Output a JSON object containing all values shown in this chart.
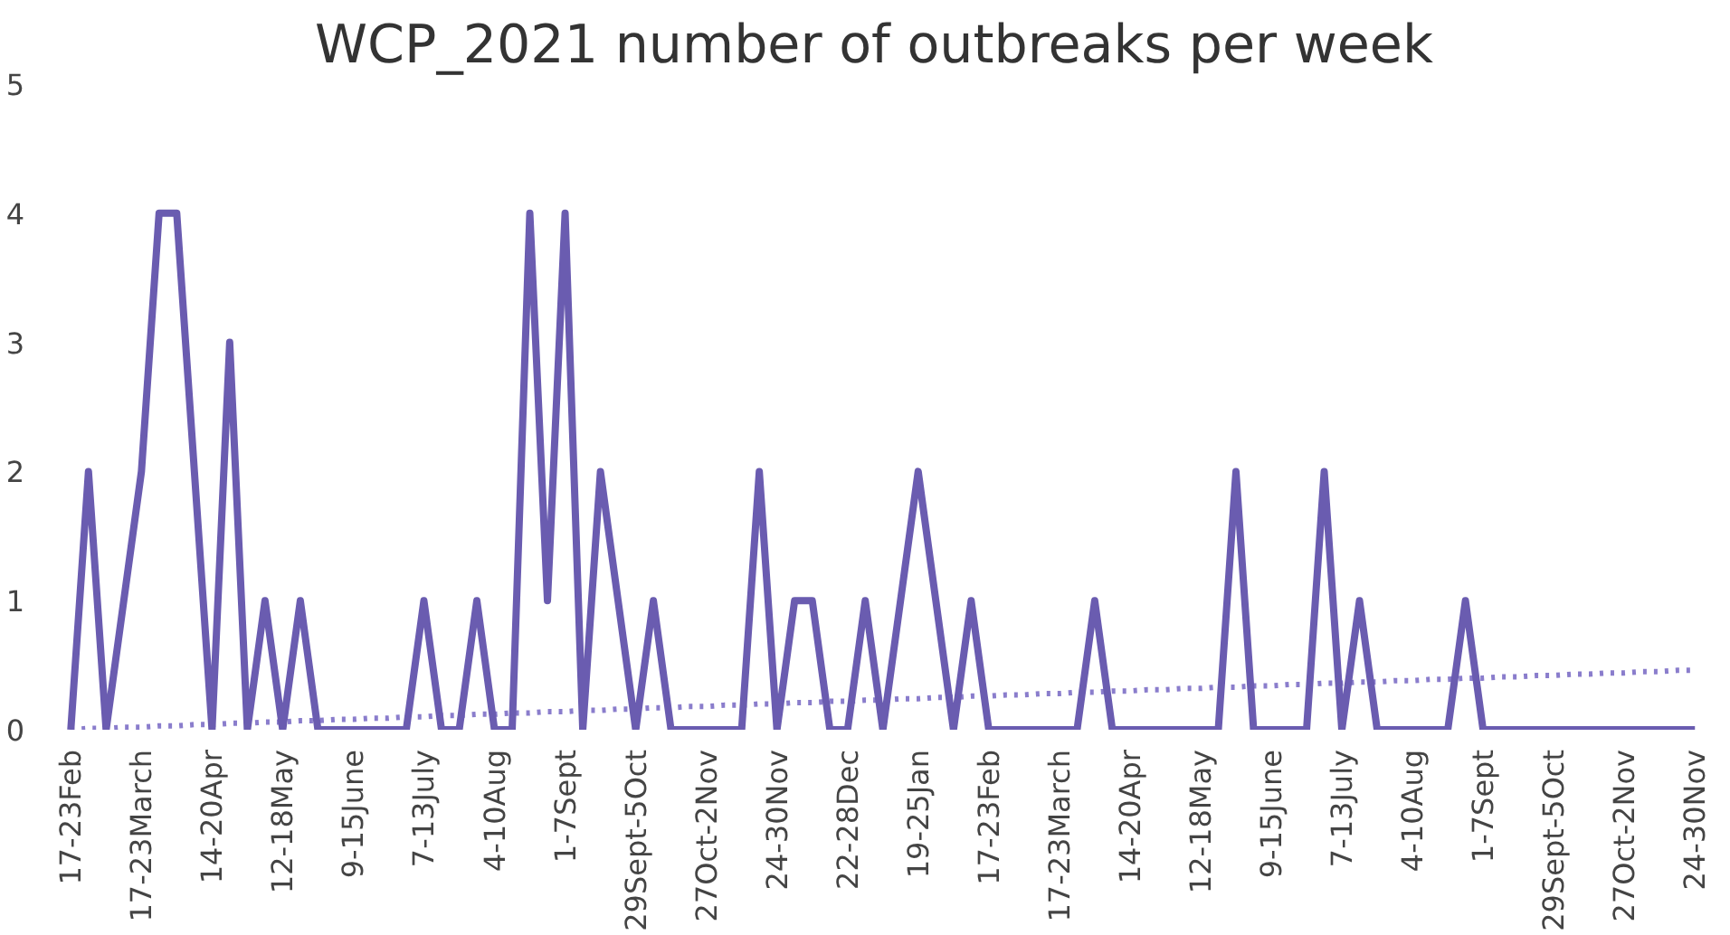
{
  "chart_data": {
    "type": "line",
    "title": "WCP_2021 number of outbreaks per week",
    "categories": [
      "17-23Feb",
      null,
      null,
      null,
      "17-23March",
      null,
      null,
      null,
      "14-20Apr",
      null,
      null,
      null,
      "12-18May",
      null,
      null,
      null,
      "9-15June",
      null,
      null,
      null,
      "7-13July",
      null,
      null,
      null,
      "4-10Aug",
      null,
      null,
      null,
      "1-7Sept",
      null,
      null,
      null,
      "29Sept-5Oct",
      null,
      null,
      null,
      "27Oct-2Nov",
      null,
      null,
      null,
      "24-30Nov",
      null,
      null,
      null,
      "22-28Dec",
      null,
      null,
      null,
      "19-25Jan",
      null,
      null,
      null,
      "17-23Feb",
      null,
      null,
      null,
      "17-23March",
      null,
      null,
      null,
      "14-20Apr",
      null,
      null,
      null,
      "12-18May",
      null,
      null,
      null,
      "9-15June",
      null,
      null,
      null,
      "7-13July",
      null,
      null,
      null,
      "4-10Aug",
      null,
      null,
      null,
      "1-7Sept",
      null,
      null,
      null,
      "29Sept-5Oct",
      null,
      null,
      null,
      "27Oct-2Nov",
      null,
      null,
      null,
      "24-30Nov"
    ],
    "series": [
      {
        "color": "#6a5cb0",
        "line_style": "solid",
        "values": [
          0,
          2,
          0,
          1,
          2,
          4,
          4,
          2,
          0,
          3,
          0,
          1,
          0,
          1,
          0,
          0,
          0,
          0,
          0,
          0,
          1,
          0,
          0,
          1,
          0,
          0,
          4,
          1,
          4,
          0,
          2,
          1,
          0,
          1,
          0,
          0,
          0,
          0,
          0,
          2,
          0,
          1,
          1,
          0,
          0,
          1,
          0,
          1,
          2,
          1,
          0,
          1,
          0,
          0,
          0,
          0,
          0,
          0,
          1,
          0,
          0,
          0,
          0,
          0,
          0,
          0,
          2,
          0,
          0,
          0,
          0,
          2,
          0,
          1,
          0,
          0,
          0,
          0,
          0,
          1,
          0,
          0,
          0,
          0,
          0,
          0,
          0,
          0,
          0,
          0,
          0,
          0,
          0
        ]
      },
      {
        "color": "#8a7dcc",
        "line_style": "dotted",
        "values": [
          0,
          0.01,
          0.01,
          0.02,
          0.02,
          0.03,
          0.03,
          0.04,
          0.04,
          0.05,
          0.05,
          0.06,
          0.06,
          0.07,
          0.07,
          0.08,
          0.08,
          0.09,
          0.09,
          0.1,
          0.1,
          0.11,
          0.11,
          0.12,
          0.12,
          0.13,
          0.13,
          0.14,
          0.14,
          0.15,
          0.15,
          0.16,
          0.16,
          0.17,
          0.17,
          0.18,
          0.18,
          0.19,
          0.19,
          0.2,
          0.2,
          0.21,
          0.21,
          0.22,
          0.22,
          0.23,
          0.23,
          0.24,
          0.24,
          0.25,
          0.25,
          0.26,
          0.26,
          0.27,
          0.27,
          0.28,
          0.28,
          0.29,
          0.29,
          0.3,
          0.3,
          0.31,
          0.31,
          0.32,
          0.32,
          0.33,
          0.33,
          0.34,
          0.34,
          0.35,
          0.35,
          0.36,
          0.36,
          0.37,
          0.37,
          0.38,
          0.38,
          0.39,
          0.39,
          0.4,
          0.4,
          0.41,
          0.41,
          0.42,
          0.42,
          0.43,
          0.43,
          0.44,
          0.44,
          0.45,
          0.45,
          0.46,
          0.46
        ]
      }
    ],
    "ylim": [
      0,
      5
    ],
    "yticks": [
      0,
      1,
      2,
      3,
      4,
      5
    ],
    "grid": false
  }
}
